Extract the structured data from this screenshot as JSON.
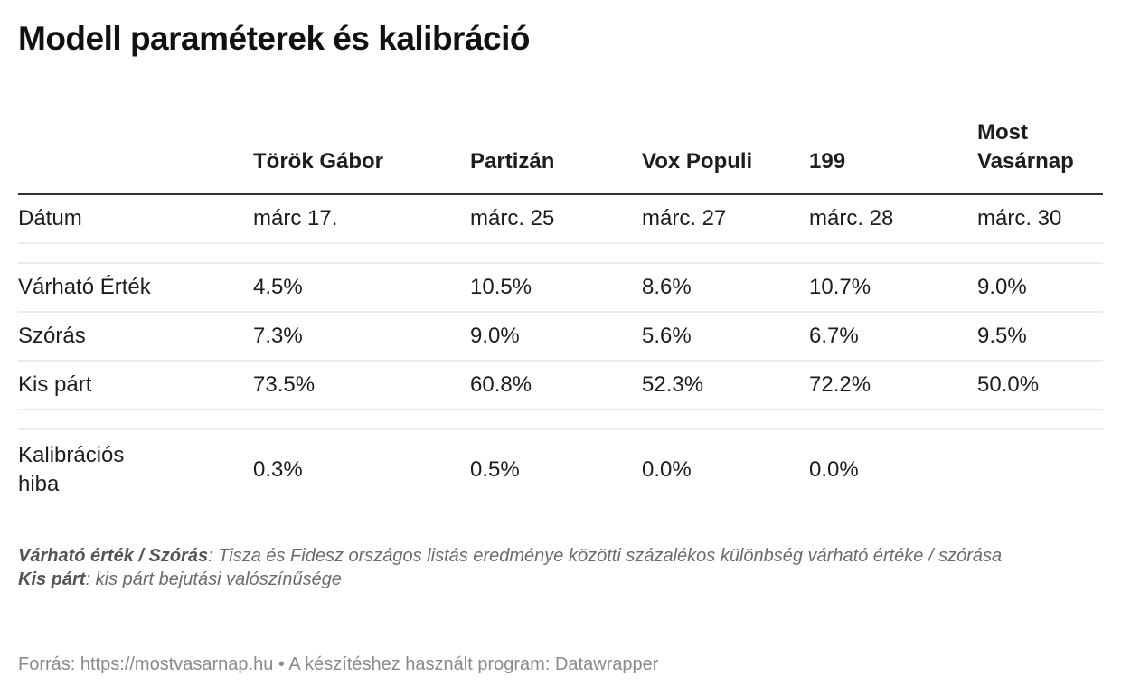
{
  "title": "Modell paraméterek és kalibráció",
  "table": {
    "columns": [
      "",
      "Török Gábor",
      "Partizán",
      "Vox Populi",
      "199",
      "Most Vasárnap"
    ],
    "rows": [
      {
        "label": "Dátum",
        "values": [
          "márc 17.",
          "márc. 25",
          "márc. 27",
          "márc. 28",
          "márc. 30"
        ]
      },
      {
        "label": "Várható Érték",
        "values": [
          "4.5%",
          "10.5%",
          "8.6%",
          "10.7%",
          "9.0%"
        ]
      },
      {
        "label": "Szórás",
        "values": [
          "7.3%",
          "9.0%",
          "5.6%",
          "6.7%",
          "9.5%"
        ]
      },
      {
        "label": "Kis párt",
        "values": [
          "73.5%",
          "60.8%",
          "52.3%",
          "72.2%",
          "50.0%"
        ]
      },
      {
        "label": "Kalibrációs hiba",
        "values": [
          "0.3%",
          "0.5%",
          "0.0%",
          "0.0%",
          ""
        ]
      }
    ]
  },
  "notes": {
    "line1_term": "Várható érték / Szórás",
    "line1_text": ": Tisza és Fidesz országos listás eredménye közötti százalékos különbség várható értéke / szórása",
    "line2_term": "Kis párt",
    "line2_text": ": kis párt bejutási valószínűsége"
  },
  "footer": "Forrás: https://mostvasarnap.hu • A készítéshez használt program: Datawrapper"
}
